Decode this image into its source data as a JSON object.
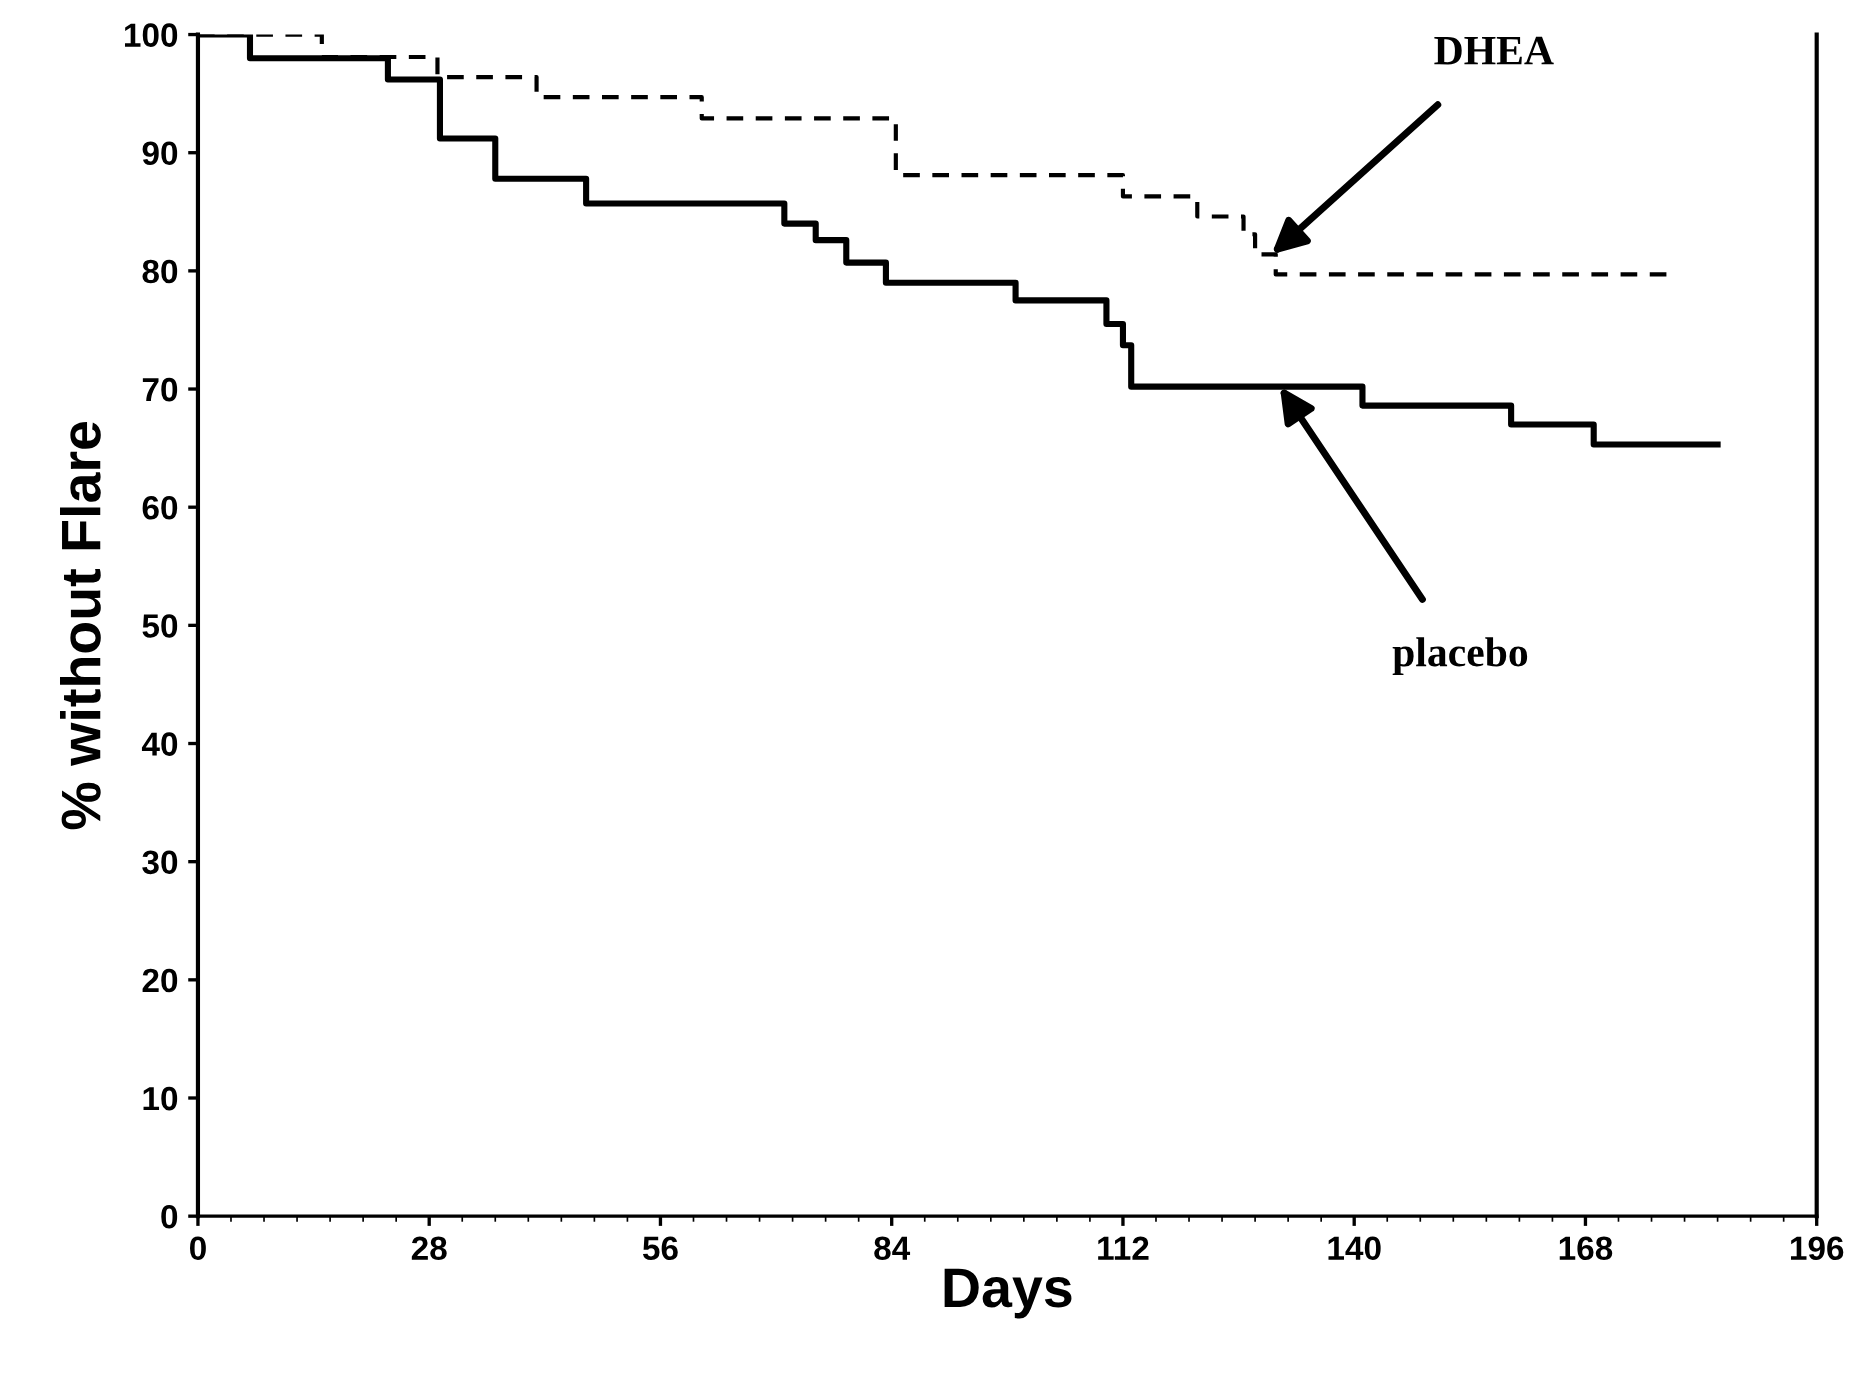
{
  "chart_data": {
    "type": "step",
    "xlabel": "Days",
    "ylabel": "% without Flare",
    "xlim": [
      0,
      196
    ],
    "xticks": [
      0,
      28,
      56,
      84,
      112,
      140,
      168,
      196
    ],
    "ylim": [
      0,
      100
    ],
    "yticks": [
      0,
      10,
      20,
      30,
      40,
      50,
      60,
      70,
      80,
      90,
      100
    ],
    "grid": false,
    "legend": false,
    "series": [
      {
        "color": "#000000",
        "line_style": "dashed",
        "x": [
          0,
          15,
          29,
          41,
          61,
          84.5,
          112,
          121,
          126.6,
          128,
          130.5,
          178
        ],
        "values": [
          100,
          98.1,
          96.4,
          94.7,
          92.9,
          88.1,
          86.3,
          84.6,
          83.1,
          81.4,
          79.7,
          79.7
        ]
      },
      {
        "color": "#000000",
        "line_style": "solid",
        "x": [
          0,
          6.3,
          23,
          29.3,
          36,
          47,
          71,
          74.8,
          78.5,
          83.3,
          99,
          110,
          112,
          113,
          141,
          159,
          169,
          184
        ],
        "values": [
          100,
          98.0,
          96.2,
          91.2,
          87.8,
          85.7,
          84.0,
          82.6,
          80.7,
          79.0,
          77.5,
          75.5,
          73.7,
          70.2,
          68.6,
          67.0,
          65.3,
          65.3
        ]
      }
    ],
    "annotations": [
      {
        "text": "DHEA",
        "x": 130,
        "y": 81.4
      },
      {
        "text": "placebo",
        "x": 131,
        "y": 70.2
      }
    ]
  }
}
